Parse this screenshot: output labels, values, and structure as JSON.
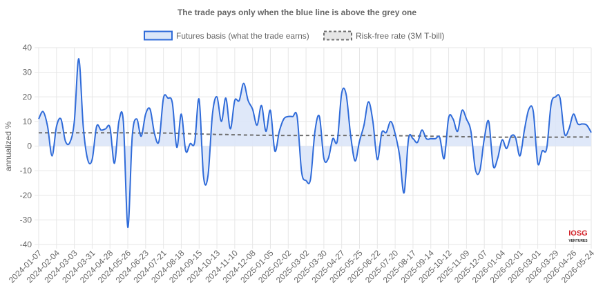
{
  "chart_data": {
    "type": "area",
    "title": "The trade pays only when the blue line is above the grey one",
    "xlabel": "",
    "ylabel": "annualized %",
    "ylim": [
      -40,
      40
    ],
    "yticks": [
      "40",
      "30",
      "20",
      "10",
      "0",
      "-10",
      "-20",
      "-30",
      "-40"
    ],
    "grid": true,
    "legend_position": "top",
    "xlabels": [
      "2024-01-07",
      "2024-02-04",
      "2024-03-03",
      "2024-03-31",
      "2024-04-28",
      "2024-05-26",
      "2024-06-23",
      "2024-07-21",
      "2024-08-18",
      "2024-09-15",
      "2024-10-13",
      "2024-11-10",
      "2024-12-08",
      "2025-01-05",
      "2025-02-02",
      "2025-03-02",
      "2025-03-30",
      "2025-04-27",
      "2025-05-25",
      "2025-06-22",
      "2025-07-20",
      "2025-08-17",
      "2025-09-14",
      "2025-10-12",
      "2025-11-09",
      "2025-12-07",
      "2026-01-04",
      "2026-02-01",
      "2026-03-01",
      "2026-03-29",
      "2026-04-26",
      "2026-05-24"
    ],
    "weeks_per_label": 4,
    "series": [
      {
        "name": "Futures basis (what the trade earns)",
        "color": "#2f6bd9",
        "fill": "#dbe6f8",
        "values": [
          11,
          14,
          8,
          -4,
          8,
          11,
          2,
          1.5,
          10,
          35.5,
          8,
          -5.5,
          -5.5,
          8,
          6.5,
          7,
          7.5,
          -7,
          10,
          10,
          -33,
          4,
          11,
          4,
          13,
          15,
          5,
          2,
          19.5,
          19.5,
          17.5,
          -0.5,
          13,
          -2,
          1,
          1.5,
          19,
          -12.5,
          -12,
          13,
          20,
          10,
          19.5,
          7,
          18.5,
          18.5,
          25.5,
          18.5,
          15,
          8.5,
          16.5,
          6,
          14.5,
          -2,
          6,
          11,
          12,
          12,
          12,
          -10.5,
          -14,
          -13.5,
          6,
          12,
          -5,
          -5,
          3,
          2,
          21.5,
          21,
          4.5,
          -6,
          2,
          8.5,
          18,
          10,
          -5.5,
          5.5,
          5.5,
          10,
          5,
          -4,
          -19,
          3,
          3,
          1.5,
          6.5,
          3,
          3,
          3,
          3.5,
          -5,
          11.5,
          11,
          6,
          14.5,
          11,
          6,
          -9.5,
          -10,
          3,
          10,
          -8,
          -5,
          2.5,
          -1,
          4,
          3.5,
          -4,
          6.5,
          15,
          14,
          -7,
          -2,
          -1,
          17,
          20,
          19.5,
          5,
          7,
          13,
          9,
          9,
          8.5,
          5.5
        ]
      },
      {
        "name": "Risk-free rate (3M T-bill)",
        "color": "#6e6e6e",
        "values": [
          5.4,
          5.4,
          5.4,
          5.4,
          5.4,
          5.4,
          5.4,
          5.4,
          5.4,
          5.4,
          5.4,
          5.4,
          5.4,
          5.4,
          5.4,
          5.4,
          5.4,
          5.4,
          5.4,
          5.4,
          5.4,
          5.4,
          5.3,
          5.3,
          5.3,
          5.3,
          5.3,
          5.3,
          5.3,
          5.3,
          5.2,
          5.2,
          5.1,
          5.1,
          5.0,
          5.0,
          4.9,
          4.9,
          4.8,
          4.8,
          4.7,
          4.7,
          4.7,
          4.6,
          4.6,
          4.6,
          4.5,
          4.5,
          4.5,
          4.4,
          4.4,
          4.4,
          4.4,
          4.3,
          4.3,
          4.3,
          4.3,
          4.3,
          4.3,
          4.3,
          4.3,
          4.3,
          4.3,
          4.3,
          4.3,
          4.3,
          4.3,
          4.3,
          4.3,
          4.3,
          4.3,
          4.3,
          4.3,
          4.3,
          4.3,
          4.3,
          4.3,
          4.3,
          4.3,
          4.3,
          4.3,
          4.2,
          4.2,
          4.2,
          4.2,
          4.1,
          4.1,
          4.1,
          4.0,
          4.0,
          4.0,
          3.9,
          3.9,
          3.9,
          3.9,
          3.8,
          3.8,
          3.8,
          3.7,
          3.7,
          3.7,
          3.7,
          3.6,
          3.6,
          3.6,
          3.6,
          3.6,
          3.6,
          3.6,
          3.6,
          3.6,
          3.6,
          3.6,
          3.6,
          3.6,
          3.6,
          3.6,
          3.6,
          3.6,
          3.7,
          3.7,
          3.7,
          3.7,
          3.7,
          3.7
        ]
      }
    ]
  },
  "watermark": {
    "line1": "IOSG",
    "line2": "VENTURES",
    "colors": [
      "#d2232a",
      "#222222"
    ]
  }
}
